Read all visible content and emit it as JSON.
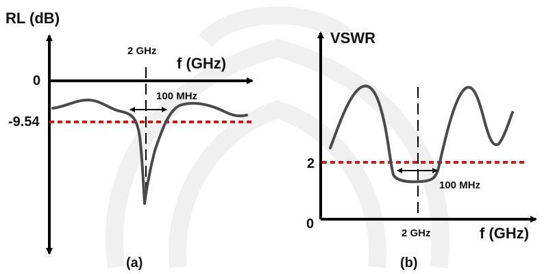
{
  "colors": {
    "axis": "#000000",
    "curve": "#4a4a4a",
    "threshold": "#cc1a1a",
    "watermark": "#f0f0f0"
  },
  "panel_a": {
    "caption": "(a)",
    "y_axis_label": "RL (dB)",
    "x_axis_label": "f (GHz)",
    "zero_label": "0",
    "threshold_label": "-9.54",
    "center_label": "2 GHz",
    "bandwidth_label": "100 MHz"
  },
  "panel_b": {
    "caption": "(b)",
    "y_axis_label": "VSWR",
    "x_axis_label": "f (GHz)",
    "zero_label": "0",
    "threshold_label": "2",
    "center_label": "2 GHz",
    "bandwidth_label": "100 MHz"
  }
}
